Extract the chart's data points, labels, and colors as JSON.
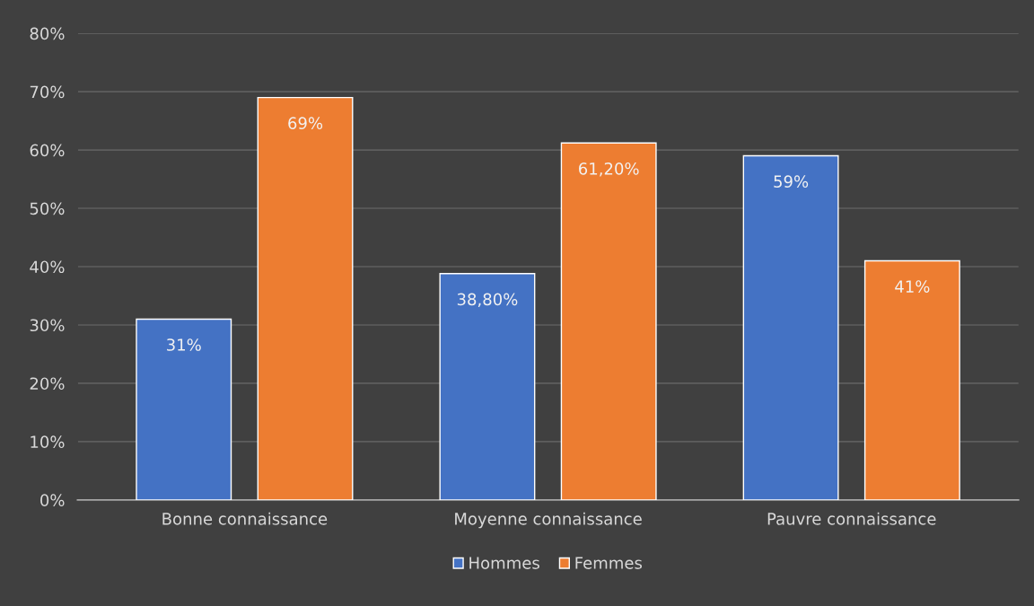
{
  "chart_data": {
    "type": "bar",
    "categories": [
      "Bonne connaissance",
      "Moyenne connaissance",
      "Pauvre connaissance"
    ],
    "series": [
      {
        "name": "Hommes",
        "color": "#4472c4",
        "values": [
          31,
          38.8,
          59
        ],
        "value_labels": [
          "31%",
          "38,80%",
          "59%"
        ]
      },
      {
        "name": "Femmes",
        "color": "#ed7d31",
        "values": [
          69,
          61.2,
          41
        ],
        "value_labels": [
          "69%",
          "61,20%",
          "41%"
        ]
      }
    ],
    "ylim": [
      0,
      80
    ],
    "yticks": [
      {
        "value": 0,
        "label": "0%"
      },
      {
        "value": 10,
        "label": "10%"
      },
      {
        "value": 20,
        "label": "20%"
      },
      {
        "value": 30,
        "label": "30%"
      },
      {
        "value": 40,
        "label": "40%"
      },
      {
        "value": 50,
        "label": "50%"
      },
      {
        "value": 60,
        "label": "60%"
      },
      {
        "value": 70,
        "label": "70%"
      },
      {
        "value": 80,
        "label": "80%"
      }
    ],
    "grid": "y",
    "legend": "bottom"
  }
}
